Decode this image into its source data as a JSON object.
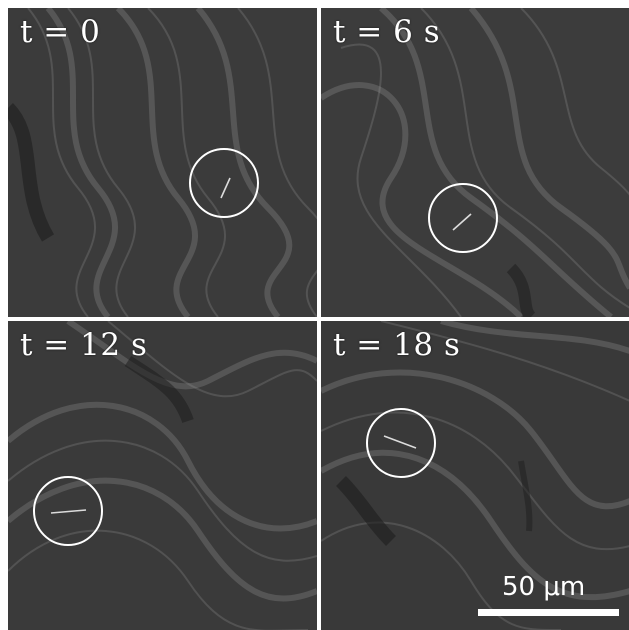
{
  "panels": [
    {
      "label": "t = 0"
    },
    {
      "label": "t = 6 s"
    },
    {
      "label": "t = 12 s"
    },
    {
      "label": "t = 18 s"
    }
  ],
  "scale_bar": {
    "label": "50 μm"
  }
}
